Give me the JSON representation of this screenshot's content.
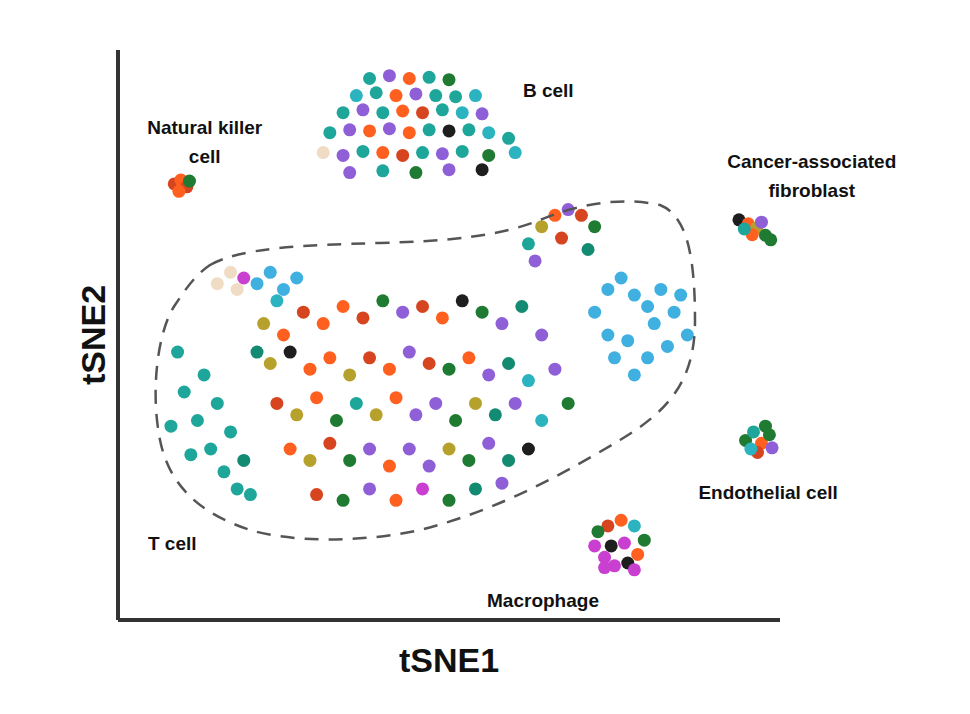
{
  "chart_data": {
    "type": "scatter",
    "x_label": "tSNE1",
    "y_label": "tSNE2",
    "xlim": [
      0,
      100
    ],
    "ylim": [
      0,
      100
    ],
    "tick_labels": false,
    "grid": false,
    "marker": "circle",
    "series": [
      {
        "name": "T cell",
        "label_x": 8.2,
        "label_y": 13.5,
        "x": [
          72,
          74,
          76,
          78,
          80,
          82,
          84,
          86,
          83,
          80,
          77,
          74,
          78,
          81,
          75,
          85,
          62,
          64,
          66,
          68,
          70,
          72,
          67,
          63,
          71,
          15,
          17,
          18,
          19,
          21,
          23,
          25,
          27,
          24,
          9,
          10,
          12,
          14,
          16,
          18,
          20,
          13,
          15,
          11,
          19,
          17,
          8,
          21,
          22,
          25,
          28,
          31,
          34,
          37,
          40,
          43,
          46,
          49,
          52,
          55,
          58,
          61,
          64,
          23,
          26,
          29,
          32,
          35,
          38,
          41,
          44,
          47,
          50,
          53,
          56,
          59,
          62,
          66,
          24,
          27,
          30,
          33,
          36,
          39,
          42,
          45,
          48,
          51,
          54,
          57,
          60,
          64,
          68,
          26,
          29,
          32,
          35,
          38,
          41,
          44,
          47,
          50,
          53,
          56,
          59,
          62,
          30,
          34,
          38,
          42,
          46,
          50,
          54,
          58
        ],
        "y": [
          54,
          58,
          60,
          57,
          55,
          58,
          54,
          50,
          48,
          46,
          49,
          50,
          43,
          52,
          46,
          57,
          66,
          69,
          71,
          72,
          71,
          69,
          67,
          63,
          65,
          59,
          61,
          58,
          60,
          59,
          61,
          58,
          60,
          56,
          47,
          40,
          35,
          30,
          26,
          23,
          22,
          43,
          38,
          29,
          28,
          33,
          34,
          47,
          52,
          50,
          54,
          52,
          55,
          53,
          56,
          54,
          55,
          53,
          56,
          54,
          52,
          55,
          50,
          45,
          47,
          44,
          46,
          43,
          46,
          44,
          47,
          45,
          44,
          46,
          43,
          45,
          42,
          44,
          38,
          36,
          39,
          35,
          38,
          36,
          39,
          36,
          38,
          35,
          38,
          36,
          38,
          35,
          38,
          30,
          28,
          31,
          28,
          30,
          27,
          30,
          27,
          30,
          28,
          31,
          28,
          30,
          22,
          21,
          23,
          21,
          23,
          21,
          23,
          24
        ],
        "colors": [
          "#3fb0df",
          "#3fb0df",
          "#3fb0df",
          "#3fb0df",
          "#3fb0df",
          "#3fb0df",
          "#3fb0df",
          "#3fb0df",
          "#3fb0df",
          "#3fb0df",
          "#3fb0df",
          "#3fb0df",
          "#3fb0df",
          "#3fb0df",
          "#3fb0df",
          "#3fb0df",
          "#1fa69a",
          "#b7a12d",
          "#ff6020",
          "#8f5fd8",
          "#d64520",
          "#1f7a32",
          "#d64520",
          "#8f5fd8",
          "#138a72",
          "#f0dcc5",
          "#f0dcc5",
          "#f0dcc5",
          "#c93fd0",
          "#3fb0df",
          "#3fb0df",
          "#3fb0df",
          "#3fb0df",
          "#2bb3c0",
          "#1fa69a",
          "#1fa69a",
          "#1fa69a",
          "#1fa69a",
          "#1fa69a",
          "#1fa69a",
          "#1fa69a",
          "#1fa69a",
          "#1fa69a",
          "#1fa69a",
          "#138a72",
          "#1fa69a",
          "#1fa69a",
          "#138a72",
          "#b7a12d",
          "#ff6020",
          "#d64520",
          "#ff6020",
          "#ff6020",
          "#d64520",
          "#1f7a32",
          "#8f5fd8",
          "#d64520",
          "#ff6020",
          "#1e1e1e",
          "#1f7a32",
          "#8f5fd8",
          "#138a72",
          "#8f5fd8",
          "#b7a12d",
          "#1e1e1e",
          "#ff6020",
          "#ff6020",
          "#b7a12d",
          "#d64520",
          "#ff6020",
          "#8f5fd8",
          "#d64520",
          "#1f7a32",
          "#ff6020",
          "#8f5fd8",
          "#138a72",
          "#2bb3c0",
          "#8f5fd8",
          "#d64520",
          "#b7a12d",
          "#ff6020",
          "#1f7a32",
          "#1fa69a",
          "#b7a12d",
          "#ff6020",
          "#8f5fd8",
          "#8f5fd8",
          "#1f7a32",
          "#b7a12d",
          "#138a72",
          "#8f5fd8",
          "#2bb3c0",
          "#1f7a32",
          "#ff6020",
          "#b7a12d",
          "#d64520",
          "#1f7a32",
          "#8f5fd8",
          "#ff6020",
          "#8f5fd8",
          "#8f5fd8",
          "#b7a12d",
          "#1f7a32",
          "#8f5fd8",
          "#138a72",
          "#1e1e1e",
          "#d64520",
          "#1f7a32",
          "#8f5fd8",
          "#ff6020",
          "#c93fd0",
          "#1f7a32",
          "#138a72",
          "#8f5fd8"
        ]
      },
      {
        "name": "B cell",
        "label_x": 65,
        "label_y": 93,
        "x": [
          38,
          41,
          44,
          47,
          50,
          36,
          39,
          42,
          45,
          48,
          51,
          54,
          34,
          37,
          40,
          43,
          46,
          49,
          52,
          55,
          32,
          35,
          38,
          41,
          44,
          47,
          50,
          53,
          56,
          59,
          31,
          34,
          37,
          40,
          43,
          46,
          49,
          52,
          56,
          60,
          35,
          40,
          45,
          50,
          55
        ],
        "y": [
          95,
          95.5,
          95,
          95.2,
          94.8,
          92,
          92.5,
          92,
          92.3,
          92,
          91.8,
          92,
          89,
          89.5,
          89,
          89.3,
          89,
          89.5,
          89,
          88.8,
          85.5,
          86,
          85.8,
          86.2,
          85.5,
          86,
          85.8,
          86,
          85.5,
          84.5,
          82,
          81.5,
          82.2,
          82,
          81.5,
          82,
          81.8,
          82.2,
          81.5,
          82,
          78.5,
          78.8,
          78.5,
          79,
          79
        ],
        "colors": [
          "#1fa69a",
          "#8f5fd8",
          "#ff6020",
          "#1fa69a",
          "#1f7a32",
          "#2bb3c0",
          "#1fa69a",
          "#ff6020",
          "#8f5fd8",
          "#1fa69a",
          "#1fa69a",
          "#2bb3c0",
          "#1fa69a",
          "#8f5fd8",
          "#1fa69a",
          "#ff6020",
          "#d64520",
          "#1fa69a",
          "#2bb3c0",
          "#8f5fd8",
          "#1fa69a",
          "#8f5fd8",
          "#ff6020",
          "#8f5fd8",
          "#ff6020",
          "#1fa69a",
          "#1e1e1e",
          "#1fa69a",
          "#2bb3c0",
          "#1fa69a",
          "#f0dcc5",
          "#8f5fd8",
          "#1fa69a",
          "#ff6020",
          "#d64520",
          "#1fa69a",
          "#8f5fd8",
          "#1fa69a",
          "#1f7a32",
          "#2bb3c0",
          "#8f5fd8",
          "#1fa69a",
          "#1f7a32",
          "#8f5fd8",
          "#1e1e1e"
        ]
      },
      {
        "name": "Natural killer\ncell",
        "label_x": 13.1,
        "label_y": 84,
        "x": [
          8.5,
          9.5,
          10.4,
          9.2,
          10.8
        ],
        "y": [
          76.5,
          77.2,
          76,
          75.2,
          77
        ],
        "colors": [
          "#d64520",
          "#ff6020",
          "#d64520",
          "#ff6020",
          "#1f7a32"
        ]
      },
      {
        "name": "Cancer-associated\nfibroblast",
        "label_x": 104.8,
        "label_y": 78,
        "x": [
          93.8,
          95.2,
          96.5,
          97.8,
          98.6,
          95.8,
          94.6,
          97.2
        ],
        "y": [
          70.2,
          69.5,
          68.8,
          67.5,
          66.7,
          67.6,
          68.6,
          69.8
        ],
        "colors": [
          "#1e1e1e",
          "#ff6020",
          "#b7a12d",
          "#1f7a32",
          "#1f7a32",
          "#ff6020",
          "#1fa69a",
          "#8f5fd8"
        ]
      },
      {
        "name": "Endothelial cell",
        "label_x": 98.2,
        "label_y": 22.5,
        "x": [
          94.8,
          96,
          97.2,
          98.4,
          96.6,
          98.8,
          95.6,
          97.8
        ],
        "y": [
          31.5,
          33,
          31,
          32.5,
          29.4,
          30.2,
          30,
          34
        ],
        "colors": [
          "#1f7a32",
          "#1fa69a",
          "#ff6020",
          "#1f7a32",
          "#d64520",
          "#8f5fd8",
          "#2bb3c0",
          "#1f7a32"
        ]
      },
      {
        "name": "Macrophage",
        "label_x": 64.2,
        "label_y": 3.5,
        "x": [
          72,
          73.5,
          75,
          77,
          78.5,
          79.5,
          78,
          76,
          74,
          72.5,
          74.5,
          76.5,
          73.5,
          78
        ],
        "y": [
          13,
          11,
          9.5,
          10,
          11.5,
          14,
          16.5,
          17.5,
          16.5,
          15.5,
          13,
          13.5,
          9.2,
          8.8
        ],
        "colors": [
          "#c93fd0",
          "#c93fd0",
          "#c93fd0",
          "#1e1e1e",
          "#ff6020",
          "#1f7a32",
          "#2bb3c0",
          "#ff6020",
          "#d64520",
          "#1f7a32",
          "#1e1e1e",
          "#c93fd0",
          "#c93fd0",
          "#c93fd0"
        ]
      }
    ]
  }
}
